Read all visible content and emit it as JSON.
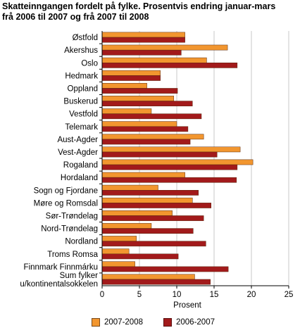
{
  "header": {
    "title_line1": "Skatteinngangen fordelt på fylke. Prosentvis endring januar-mars",
    "title_line2": "frå 2006 til 2007 og frå 2007 til 2008"
  },
  "colors": {
    "series_2007_2008": "#f2962f",
    "series_2006_2007": "#a21a1b",
    "grid": "#c8c8c8",
    "axis": "#000000"
  },
  "chart_data": {
    "type": "bar",
    "orientation": "horizontal",
    "title": "Skatteinngangen fordelt på fylke. Prosentvis endring januar-mars frå 2006 til 2007 og frå 2007 til 2008",
    "xlabel": "Prosent",
    "ylabel": "",
    "xlim": [
      0,
      25
    ],
    "xticks": [
      0,
      5,
      10,
      15,
      20,
      25
    ],
    "grid": true,
    "legend_position": "bottom",
    "categories": [
      [
        "Østfold"
      ],
      [
        "Akershus"
      ],
      [
        "Oslo"
      ],
      [
        "Hedmark"
      ],
      [
        "Oppland"
      ],
      [
        "Buskerud"
      ],
      [
        "Vestfold"
      ],
      [
        "Telemark"
      ],
      [
        "Aust-Agder"
      ],
      [
        "Vest-Agder"
      ],
      [
        "Rogaland"
      ],
      [
        "Hordaland"
      ],
      [
        "Sogn og Fjordane"
      ],
      [
        "Møre og Romsdal"
      ],
      [
        "Sør-Trøndelag"
      ],
      [
        "Nord-Trøndelag"
      ],
      [
        "Nordland"
      ],
      [
        "Troms Romsa"
      ],
      [
        "Finnmark Finnmárku"
      ],
      [
        "Sum fylker",
        "u/kontinentalsokkelen"
      ]
    ],
    "series": [
      {
        "name": "2007-2008",
        "values": [
          11.1,
          16.8,
          14.0,
          7.8,
          6.0,
          9.6,
          6.6,
          10.0,
          13.6,
          18.5,
          20.2,
          11.1,
          7.5,
          12.1,
          9.4,
          6.6,
          4.6,
          3.6,
          4.4,
          12.4
        ]
      },
      {
        "name": "2006-2007",
        "values": [
          11.1,
          10.6,
          18.1,
          7.8,
          10.1,
          12.1,
          13.3,
          11.5,
          11.8,
          15.4,
          18.1,
          18.0,
          12.9,
          14.6,
          13.6,
          12.2,
          13.9,
          10.2,
          16.9,
          14.5
        ]
      }
    ]
  }
}
